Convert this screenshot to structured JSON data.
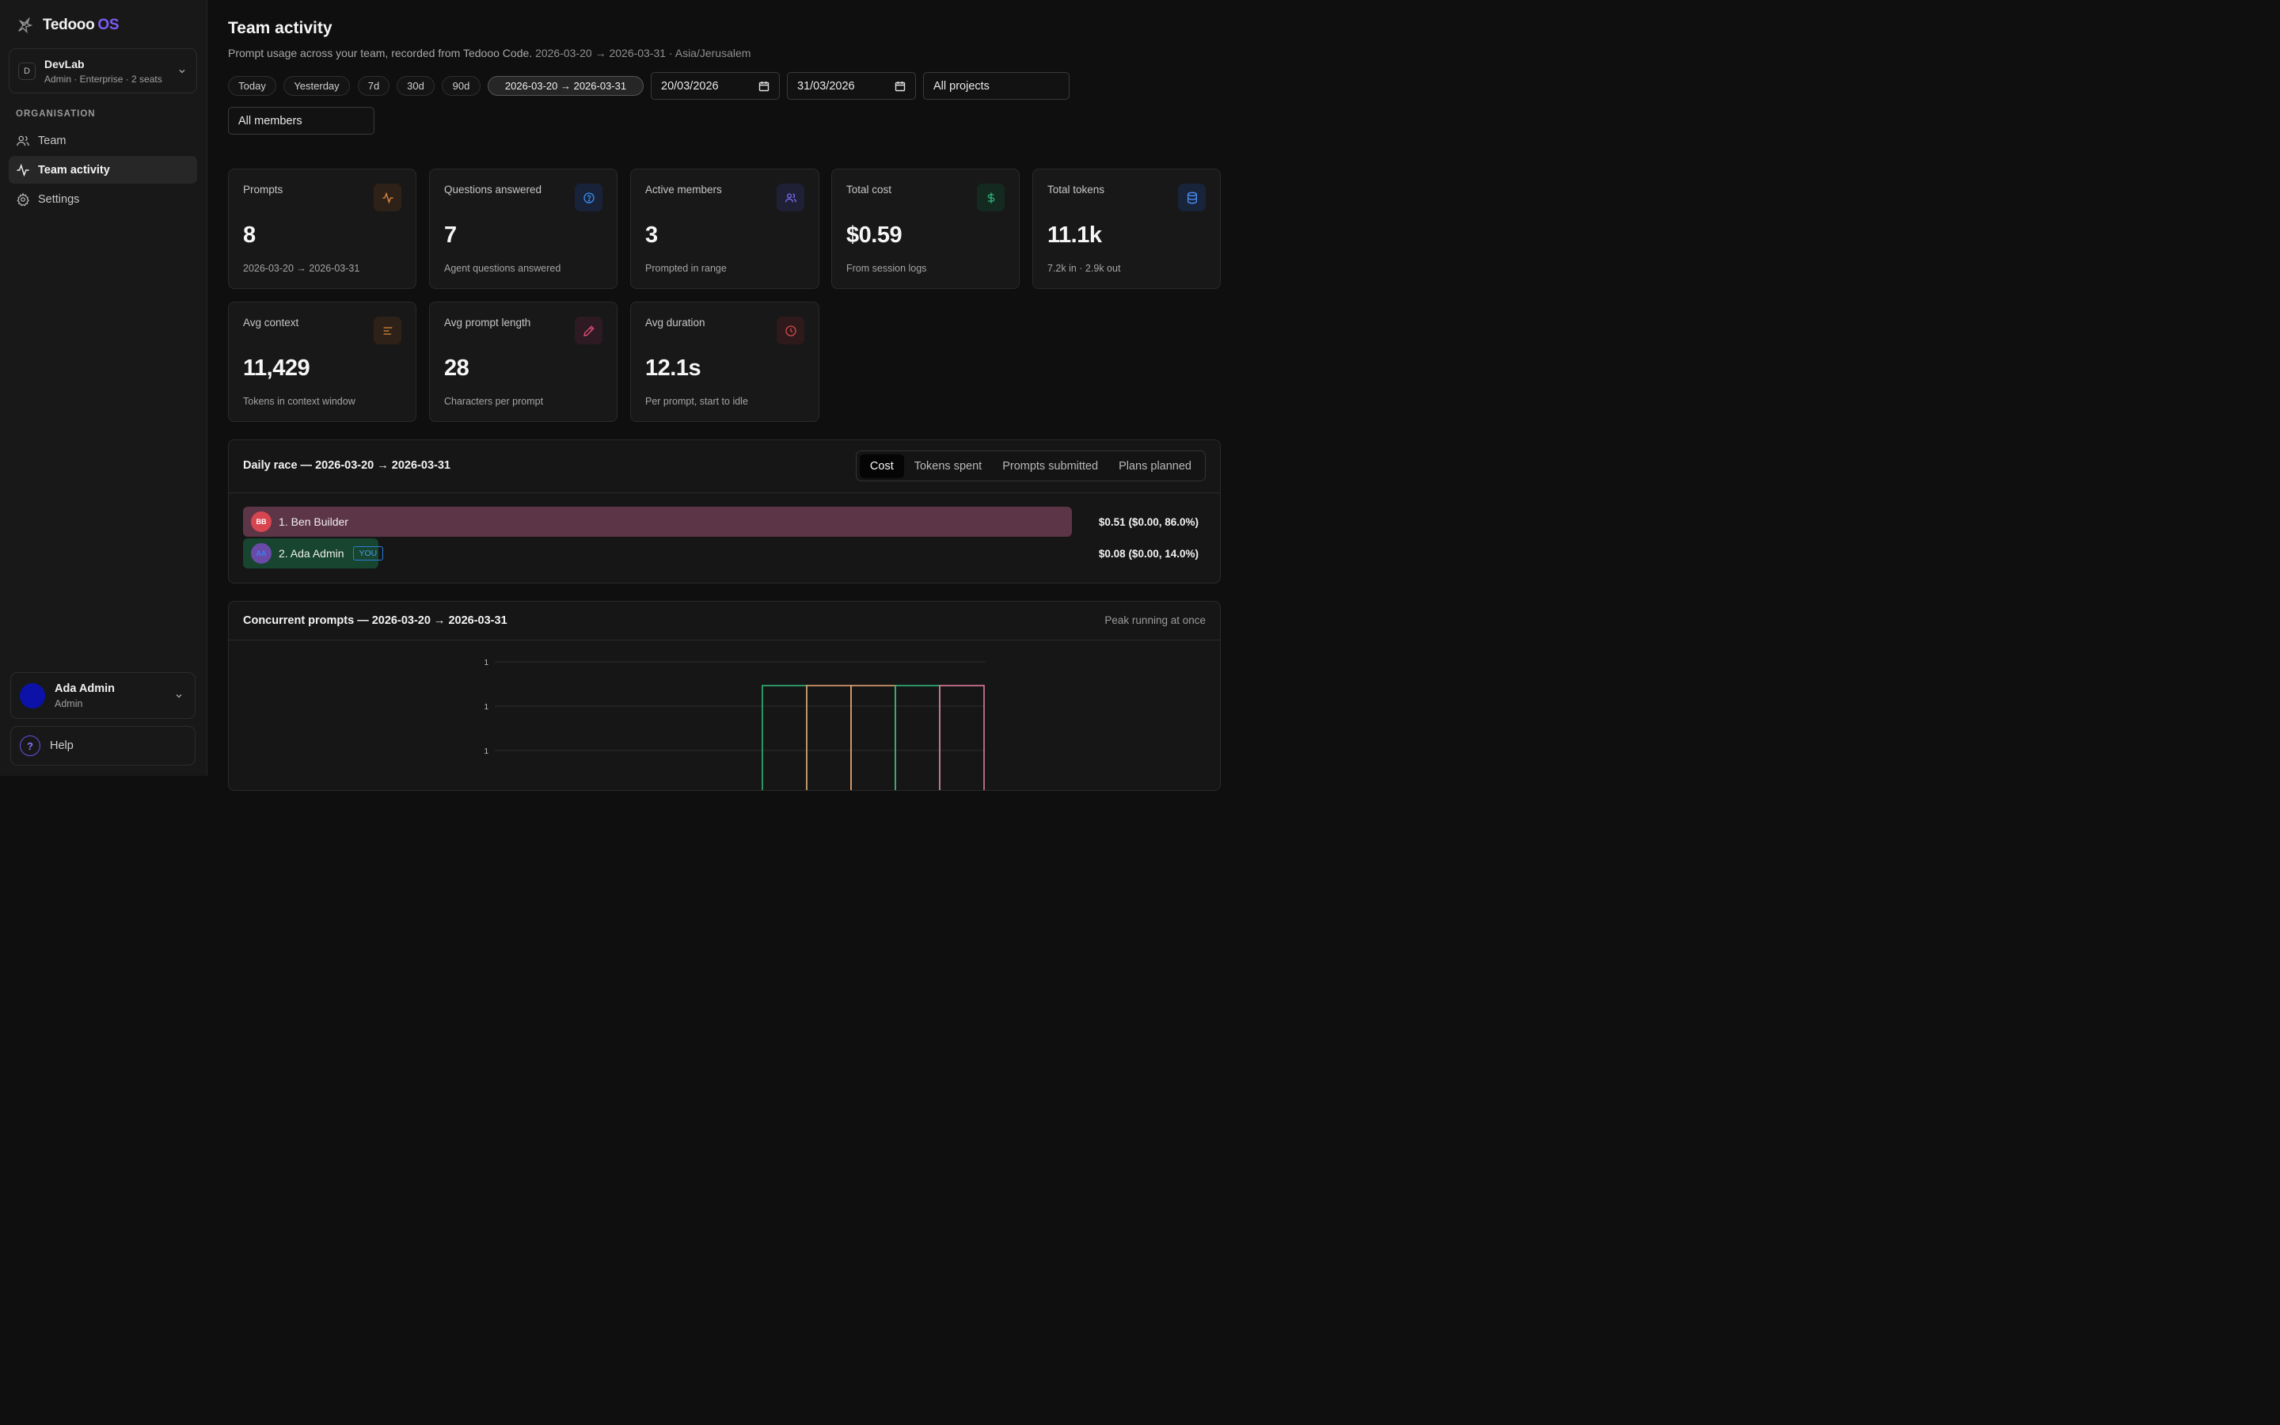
{
  "brand": {
    "name": "Tedooo",
    "suffix": "OS"
  },
  "org": {
    "initial": "D",
    "name": "DevLab",
    "meta": "Admin · Enterprise · 2 seats"
  },
  "sidebar": {
    "section": "ORGANISATION",
    "items": [
      {
        "label": "Team",
        "icon": "users-icon",
        "active": false
      },
      {
        "label": "Team activity",
        "icon": "activity-icon",
        "active": true
      },
      {
        "label": "Settings",
        "icon": "gear-icon",
        "active": false
      }
    ]
  },
  "user": {
    "name": "Ada Admin",
    "role": "Admin"
  },
  "help": {
    "label": "Help",
    "glyph": "?"
  },
  "header": {
    "title": "Team activity",
    "subtitle": "Prompt usage across your team, recorded from Tedooo Code.",
    "subtitle_range": "2026-03-20 → 2026-03-31 · Asia/Jerusalem"
  },
  "filters": {
    "presets": [
      "Today",
      "Yesterday",
      "7d",
      "30d",
      "90d"
    ],
    "active_range": "2026-03-20 → 2026-03-31",
    "from_date": "20/03/2026",
    "to_date": "31/03/2026",
    "project": "All projects",
    "member": "All members"
  },
  "stats": [
    {
      "label": "Prompts",
      "value": "8",
      "foot": "2026-03-20 → 2026-03-31",
      "icon": "activity-icon",
      "color": "#e08a3c",
      "bg": "#2e2218"
    },
    {
      "label": "Questions answered",
      "value": "7",
      "foot": "Agent questions answered",
      "icon": "help-circle-icon",
      "color": "#3d8cf0",
      "bg": "#18233a"
    },
    {
      "label": "Active members",
      "value": "3",
      "foot": "Prompted in range",
      "icon": "users-icon",
      "color": "#7b6cf0",
      "bg": "#1f1f36"
    },
    {
      "label": "Total cost",
      "value": "$0.59",
      "foot": "From session logs",
      "icon": "dollar-icon",
      "color": "#2fb67a",
      "bg": "#142a20"
    },
    {
      "label": "Total tokens",
      "value": "11.1k",
      "foot": "7.2k in · 2.9k out",
      "icon": "database-icon",
      "color": "#4f8ef5",
      "bg": "#18243a"
    },
    {
      "label": "Avg context",
      "value": "11,429",
      "foot": "Tokens in context window",
      "icon": "align-left-icon",
      "color": "#d88a3a",
      "bg": "#2e2218"
    },
    {
      "label": "Avg prompt length",
      "value": "28",
      "foot": "Characters per prompt",
      "icon": "pencil-icon",
      "color": "#e0507a",
      "bg": "#2e1a22"
    },
    {
      "label": "Avg duration",
      "value": "12.1s",
      "foot": "Per prompt, start to idle",
      "icon": "clock-icon",
      "color": "#d04a4a",
      "bg": "#2e1a1a"
    }
  ],
  "race": {
    "title": "Daily race — 2026-03-20 → 2026-03-31",
    "tabs": [
      "Cost",
      "Tokens spent",
      "Prompts submitted",
      "Plans planned"
    ],
    "active_tab": "Cost",
    "rows": [
      {
        "rank_name": "1. Ben Builder",
        "initials": "BB",
        "value": "$0.51 ($0.00, 86.0%)",
        "share": 0.86,
        "bar_color": "#5c3546",
        "avatar_bg": "#d64550",
        "avatar_fg": "#ffffff",
        "you": false
      },
      {
        "rank_name": "2. Ada Admin",
        "initials": "AA",
        "value": "$0.08 ($0.00, 14.0%)",
        "share": 0.14,
        "bar_color": "#17452f",
        "avatar_bg": "#6a4aa8",
        "avatar_fg": "#3f7ef0",
        "you": true,
        "you_label": "YOU"
      }
    ]
  },
  "concurrent": {
    "title": "Concurrent prompts — 2026-03-20 → 2026-03-31",
    "caption": "Peak running at once"
  },
  "chart_data": {
    "type": "bar",
    "title": "Concurrent prompts — 2026-03-20 → 2026-03-31",
    "ytick_labels": [
      "1",
      "1",
      "1"
    ],
    "series": [
      {
        "color": "#2fb67a",
        "values": [
          1
        ]
      },
      {
        "color": "#e0a070",
        "values": [
          1
        ]
      },
      {
        "color": "#e0a070",
        "values": [
          1
        ]
      },
      {
        "color": "#2fb67a",
        "values": [
          1
        ]
      },
      {
        "color": "#e07a9a",
        "values": [
          1
        ]
      }
    ]
  }
}
